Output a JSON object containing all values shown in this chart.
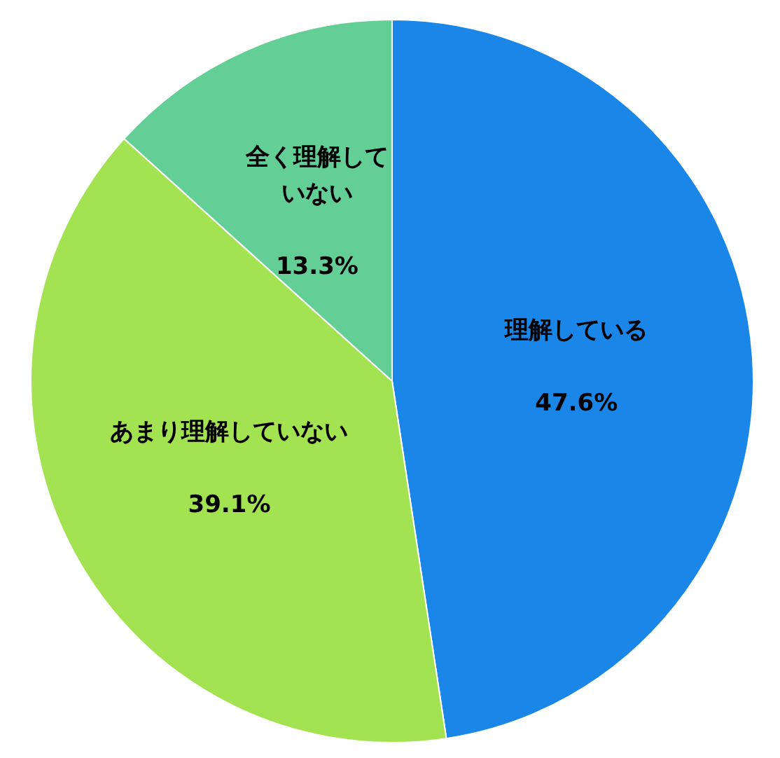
{
  "chart_data": {
    "type": "pie",
    "categories": [
      "理解している",
      "あまり理解していない",
      "全く理解していない"
    ],
    "values": [
      47.6,
      39.1,
      13.3
    ],
    "colors": [
      "#1a86e8",
      "#a3e250",
      "#63cf96"
    ],
    "value_labels": [
      "47.6%",
      "39.1%",
      "13.3%"
    ],
    "legend": false
  }
}
